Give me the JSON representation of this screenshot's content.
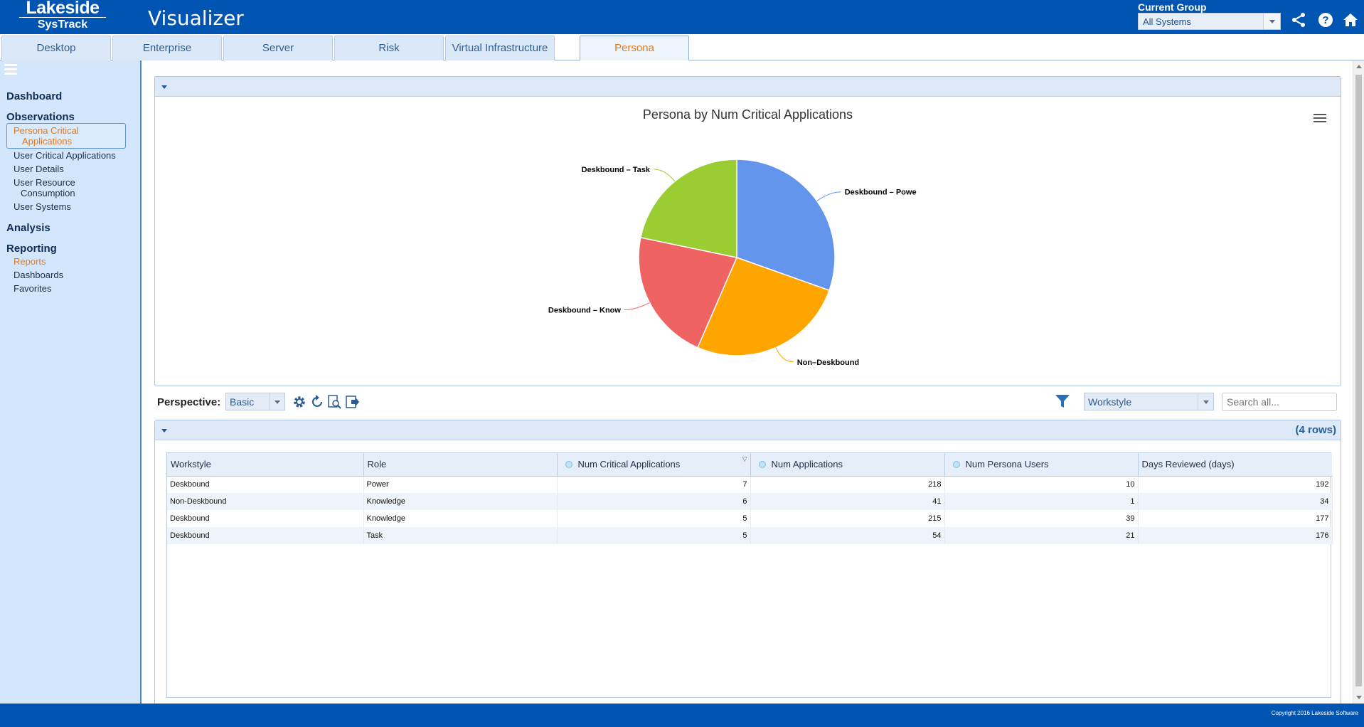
{
  "header": {
    "logo_top": "Lakeside",
    "logo_bottom": "SysTrack",
    "app_title": "Visualizer",
    "current_group_label": "Current Group",
    "current_group_value": "All Systems"
  },
  "tabs": [
    {
      "label": "Desktop"
    },
    {
      "label": "Enterprise"
    },
    {
      "label": "Server"
    },
    {
      "label": "Risk"
    },
    {
      "label": "Virtual Infrastructure"
    },
    {
      "label": "Persona",
      "active": true
    }
  ],
  "sidebar": {
    "dashboard": "Dashboard",
    "observations": "Observations",
    "observation_items": [
      {
        "label_line1": "Persona Critical",
        "label_line2": "Applications",
        "active": true
      },
      {
        "label": "User Critical Applications"
      },
      {
        "label": "User Details"
      },
      {
        "label_line1": "User Resource",
        "label_line2": "Consumption"
      },
      {
        "label": "User Systems"
      }
    ],
    "analysis": "Analysis",
    "reporting": "Reporting",
    "reporting_items": [
      {
        "label": "Reports",
        "active": true
      },
      {
        "label": "Dashboards"
      },
      {
        "label": "Favorites"
      }
    ]
  },
  "chart_data": {
    "type": "pie",
    "title": "Persona by Num Critical Applications",
    "categories": [
      "Deskbound – Powe",
      "Non–Deskbound",
      "Deskbound – Know",
      "Deskbound – Task"
    ],
    "values": [
      7,
      6,
      5,
      5
    ],
    "colors": [
      "#6495ed",
      "#ffa500",
      "#ef6363",
      "#9acd32"
    ]
  },
  "toolbar": {
    "perspective_label": "Perspective:",
    "perspective_value": "Basic",
    "workstyle_value": "Workstyle",
    "search_placeholder": "Search all..."
  },
  "grid": {
    "row_count": "(4 rows)",
    "columns": [
      "Workstyle",
      "Role",
      "Num Critical Applications",
      "Num Applications",
      "Num Persona Users",
      "Days Reviewed (days)"
    ],
    "rows": [
      [
        "Deskbound",
        "Power",
        "7",
        "218",
        "10",
        "192"
      ],
      [
        "Non-Deskbound",
        "Knowledge",
        "6",
        "41",
        "1",
        "34"
      ],
      [
        "Deskbound",
        "Knowledge",
        "5",
        "215",
        "39",
        "177"
      ],
      [
        "Deskbound",
        "Task",
        "5",
        "54",
        "21",
        "176"
      ]
    ]
  },
  "footer": {
    "copyright": "Copyright 2016 Lakeside Software"
  }
}
